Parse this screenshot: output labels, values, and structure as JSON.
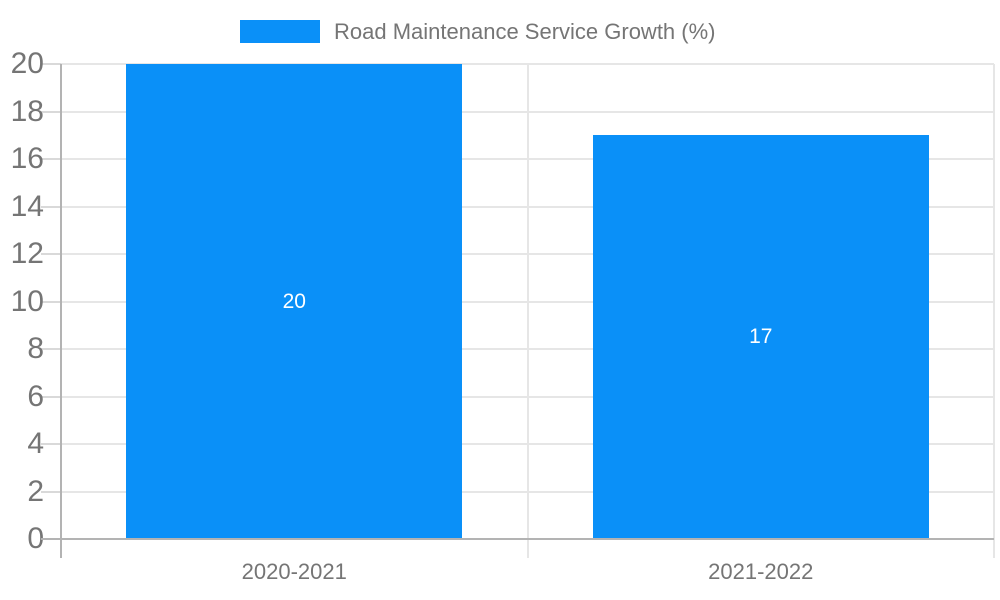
{
  "chart_data": {
    "type": "bar",
    "title": "Road Maintenance Service Growth (%)",
    "categories": [
      "2020-2021",
      "2021-2022"
    ],
    "values": [
      20,
      17
    ],
    "bar_value_labels": [
      "20",
      "17"
    ],
    "xlabel": "",
    "ylabel": "",
    "ylim": [
      0,
      20
    ],
    "yticks": [
      0,
      2,
      4,
      6,
      8,
      10,
      12,
      14,
      16,
      18,
      20
    ],
    "grid": true,
    "legend_position": "top",
    "colors": {
      "bar": "#0a90f8",
      "value_label_text": "#ffffff",
      "axis_text": "#757575",
      "legend_text": "#757575",
      "grid_line": "#e6e6e6",
      "tick_dash": "#d9d9d9",
      "axis_line": "#b3b3b3",
      "background": "#ffffff"
    }
  }
}
